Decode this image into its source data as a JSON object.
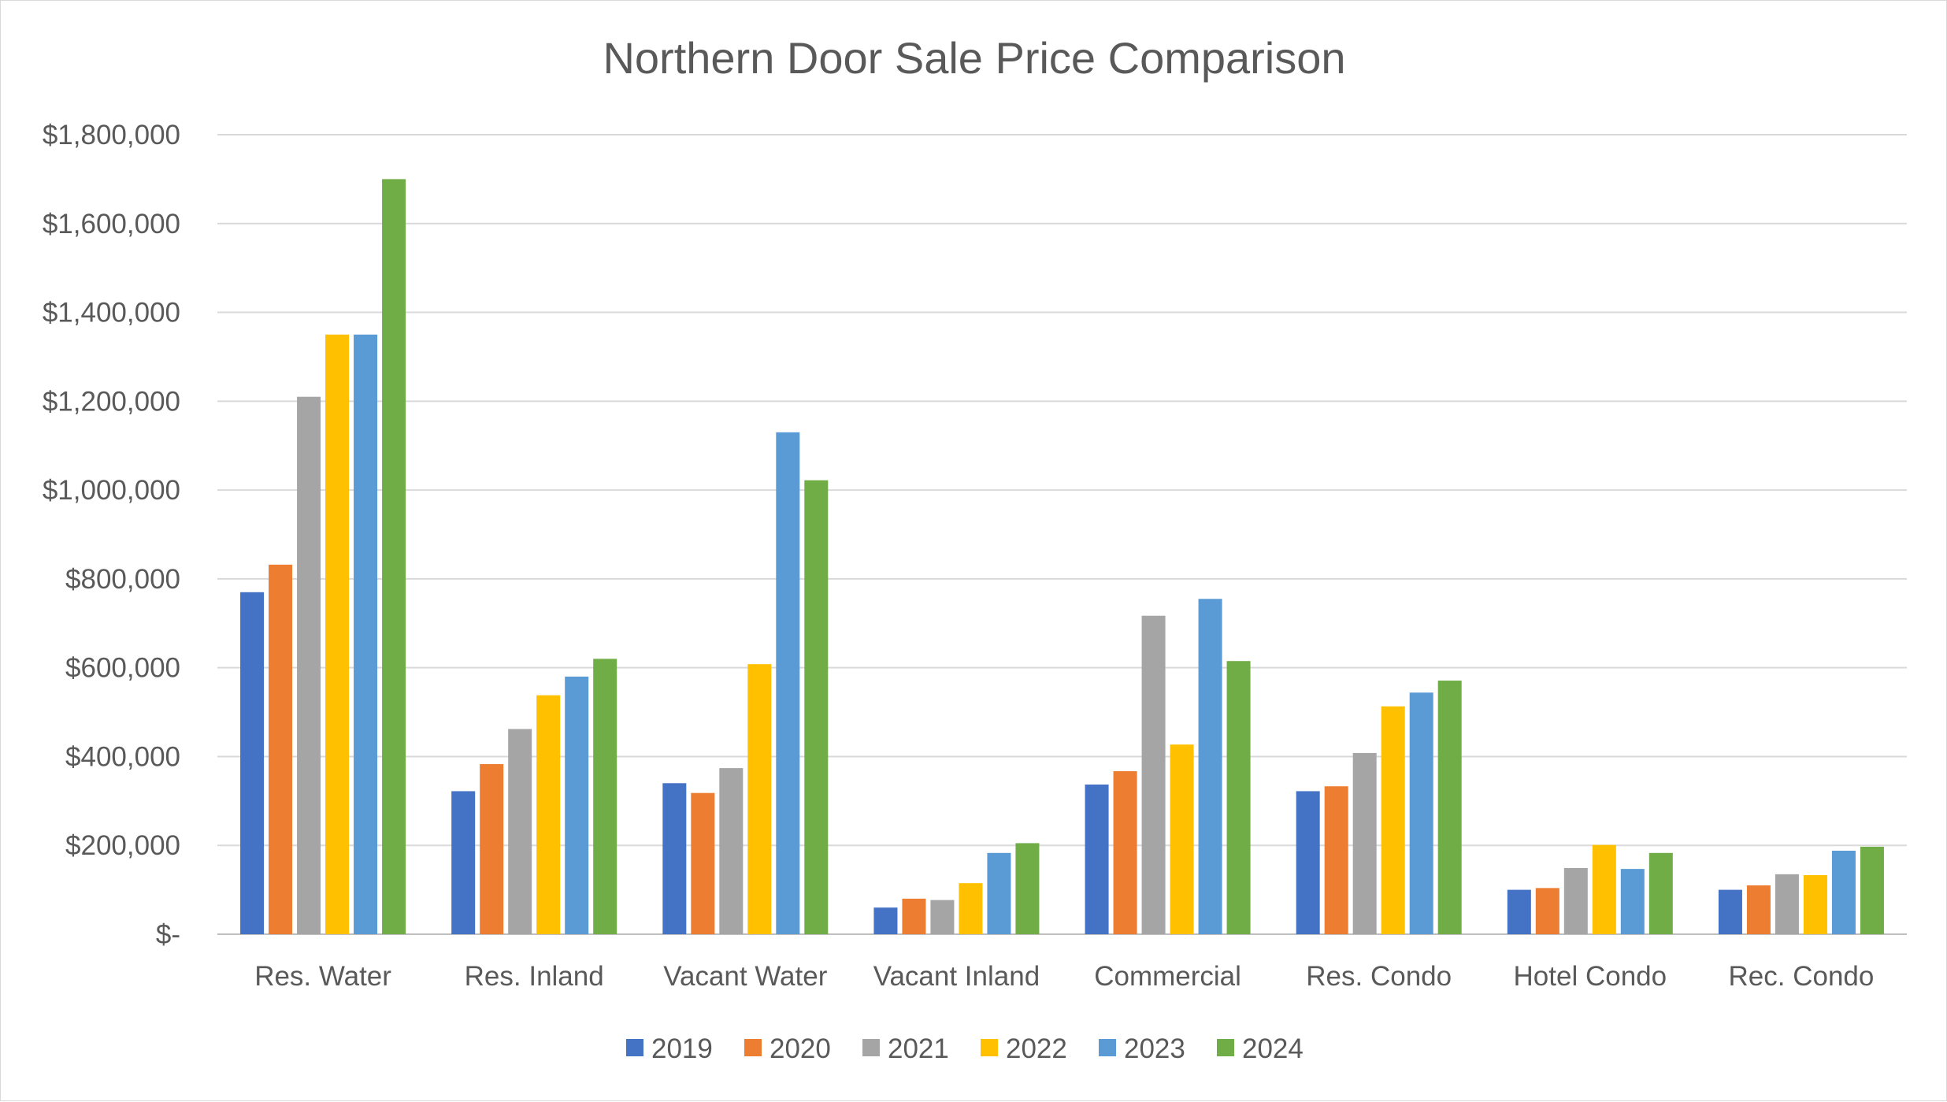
{
  "chart_data": {
    "type": "bar",
    "title": "Northern Door Sale Price Comparison",
    "xlabel": "",
    "ylabel": "",
    "ylim": [
      0,
      1800000
    ],
    "y_ticks": [
      {
        "value": 0,
        "label": "$-"
      },
      {
        "value": 200000,
        "label": "$200,000"
      },
      {
        "value": 400000,
        "label": "$400,000"
      },
      {
        "value": 600000,
        "label": "$600,000"
      },
      {
        "value": 800000,
        "label": "$800,000"
      },
      {
        "value": 1000000,
        "label": "$1,000,000"
      },
      {
        "value": 1200000,
        "label": "$1,200,000"
      },
      {
        "value": 1400000,
        "label": "$1,400,000"
      },
      {
        "value": 1600000,
        "label": "$1,600,000"
      },
      {
        "value": 1800000,
        "label": "$1,800,000"
      }
    ],
    "grid": true,
    "legend_position": "bottom",
    "categories": [
      "Res. Water",
      "Res. Inland",
      "Vacant Water",
      "Vacant Inland",
      "Commercial",
      "Res. Condo",
      "Hotel Condo",
      "Rec. Condo"
    ],
    "series": [
      {
        "name": "2019",
        "color": "#4472C4",
        "values": [
          770000,
          322000,
          340000,
          60000,
          337000,
          322000,
          100000,
          100000
        ]
      },
      {
        "name": "2020",
        "color": "#ED7D31",
        "values": [
          832000,
          383000,
          318000,
          80000,
          367000,
          333000,
          104000,
          110000
        ]
      },
      {
        "name": "2021",
        "color": "#A5A5A5",
        "values": [
          1210000,
          462000,
          374000,
          77000,
          717000,
          408000,
          149000,
          135000
        ]
      },
      {
        "name": "2022",
        "color": "#FFC000",
        "values": [
          1350000,
          538000,
          608000,
          115000,
          427000,
          513000,
          201000,
          133000
        ]
      },
      {
        "name": "2023",
        "color": "#5B9BD5",
        "values": [
          1350000,
          580000,
          1130000,
          183000,
          755000,
          544000,
          147000,
          188000
        ]
      },
      {
        "name": "2024",
        "color": "#70AD47",
        "values": [
          1700000,
          620000,
          1022000,
          205000,
          615000,
          571000,
          183000,
          197000
        ]
      }
    ]
  }
}
